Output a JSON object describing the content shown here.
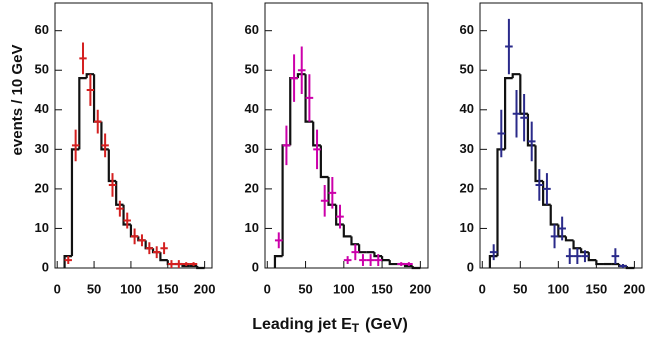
{
  "chart_data": [
    {
      "type": "histogram",
      "ylabel": "events / 10 GeV",
      "xlim": [
        -3,
        210
      ],
      "ylim": [
        0,
        67
      ],
      "xticks": [
        0,
        50,
        100,
        150,
        200
      ],
      "yticks": [
        0,
        10,
        20,
        30,
        40,
        50,
        60
      ],
      "bins": [
        10,
        20,
        30,
        40,
        50,
        60,
        70,
        80,
        90,
        100,
        110,
        120,
        130,
        140,
        150,
        160,
        170,
        180,
        190,
        200
      ],
      "counts": [
        3,
        30,
        48,
        49,
        37,
        30,
        22,
        16,
        11,
        8,
        7,
        5,
        4,
        2,
        1,
        1,
        0.5,
        0.5,
        0
      ],
      "hist_color": "#111111",
      "points": {
        "color": "#d42020",
        "x": [
          15,
          25,
          35,
          45,
          55,
          65,
          75,
          85,
          95,
          105,
          115,
          125,
          135,
          145,
          155,
          165,
          175,
          185
        ],
        "values": [
          2,
          31,
          53,
          45,
          37,
          31,
          21,
          15,
          12,
          8,
          7,
          5,
          4,
          5,
          1,
          1,
          1,
          1
        ],
        "errors": [
          1,
          4,
          4,
          4,
          3,
          3,
          3,
          2,
          2,
          2,
          1.5,
          1.5,
          1.5,
          1.5,
          1,
          1,
          0.5,
          0.5
        ]
      }
    },
    {
      "type": "histogram",
      "xlabel": "Leading jet E",
      "xlabel_sub": "T",
      "xlabel_unit": "(GeV)",
      "xlim": [
        -3,
        210
      ],
      "ylim": [
        0,
        67
      ],
      "xticks": [
        0,
        50,
        100,
        150,
        200
      ],
      "yticks": [
        0,
        10,
        20,
        30,
        40,
        50,
        60
      ],
      "bins": [
        10,
        20,
        30,
        40,
        50,
        60,
        70,
        80,
        90,
        100,
        110,
        120,
        130,
        140,
        150,
        160,
        170,
        180,
        190,
        200
      ],
      "counts": [
        3,
        31,
        48,
        49,
        37,
        31,
        23,
        16,
        11,
        8,
        6,
        4,
        4,
        3,
        2,
        1,
        1,
        0.5,
        0
      ],
      "hist_color": "#111111",
      "points": {
        "color": "#cc00aa",
        "x": [
          15,
          25,
          35,
          45,
          55,
          65,
          75,
          85,
          95,
          105,
          115,
          125,
          135,
          145,
          175,
          185
        ],
        "values": [
          7,
          31,
          48,
          50,
          43,
          30,
          17,
          19,
          13,
          2,
          4,
          2,
          2,
          2,
          1,
          1
        ],
        "errors": [
          2,
          5,
          6,
          6,
          6,
          5,
          4,
          4,
          3,
          1,
          2,
          1.5,
          1.5,
          1.5,
          0.5,
          0.5
        ]
      }
    },
    {
      "type": "histogram",
      "xlim": [
        -3,
        210
      ],
      "ylim": [
        0,
        67
      ],
      "xticks": [
        0,
        50,
        100,
        150,
        200
      ],
      "yticks": [
        0,
        10,
        20,
        30,
        40,
        50,
        60
      ],
      "bins": [
        10,
        20,
        30,
        40,
        50,
        60,
        70,
        80,
        90,
        100,
        110,
        120,
        130,
        140,
        150,
        160,
        170,
        180,
        190,
        200
      ],
      "counts": [
        3,
        30,
        48,
        49,
        39,
        31,
        22,
        16,
        11,
        8,
        7,
        5,
        4,
        2,
        1,
        1,
        1,
        0.5,
        0
      ],
      "hist_color": "#111111",
      "points": {
        "color": "#2a2a8a",
        "x": [
          15,
          25,
          35,
          45,
          55,
          65,
          75,
          85,
          95,
          105,
          115,
          125,
          135,
          175,
          185
        ],
        "values": [
          4,
          34,
          56,
          39,
          38,
          32,
          21,
          20,
          8,
          10,
          3,
          3,
          3,
          3,
          0.5
        ],
        "errors": [
          2,
          6,
          7,
          6,
          6,
          5,
          4,
          4,
          3,
          3,
          2,
          2,
          1.5,
          2,
          0.5
        ]
      }
    }
  ]
}
